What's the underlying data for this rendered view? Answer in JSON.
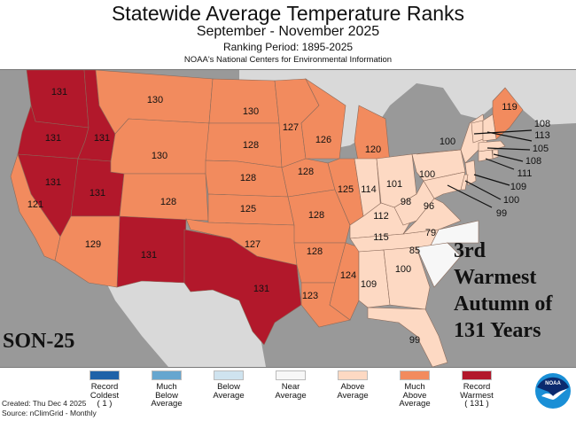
{
  "header": {
    "title": "Statewide Average Temperature Ranks",
    "period": "September - November 2025",
    "ranking_period": "Ranking Period: 1895-2025",
    "agency": "NOAA's National Centers for Environmental Information"
  },
  "annotations": {
    "season_code": "SON-25",
    "headline_lines": [
      "3rd",
      "Warmest",
      "Autumn of",
      "131 Years"
    ]
  },
  "colors": {
    "record_coldest": "#1f62a8",
    "much_below": "#66a6cf",
    "below": "#cfe3ef",
    "near": "#f7f7f7",
    "above": "#fdd9c3",
    "much_above": "#f28b5e",
    "record_warmest": "#b2182b",
    "ocean": "#999999",
    "land_other": "#d9d9d9"
  },
  "legend": [
    {
      "label_lines": [
        "Record",
        "Coldest",
        "( 1 )"
      ],
      "category": "record_coldest"
    },
    {
      "label_lines": [
        "Much",
        "Below",
        "Average"
      ],
      "category": "much_below"
    },
    {
      "label_lines": [
        "Below",
        "Average"
      ],
      "category": "below"
    },
    {
      "label_lines": [
        "Near",
        "Average"
      ],
      "category": "near"
    },
    {
      "label_lines": [
        "Above",
        "Average"
      ],
      "category": "above"
    },
    {
      "label_lines": [
        "Much",
        "Above",
        "Average"
      ],
      "category": "much_above"
    },
    {
      "label_lines": [
        "Record",
        "Warmest",
        "( 131 )"
      ],
      "category": "record_warmest"
    }
  ],
  "footer": {
    "created": "Created: Thu Dec  4 2025",
    "source": "Source: nClimGrid - Monthly",
    "logo_text": "NOAA"
  },
  "states": [
    {
      "state": "WA",
      "rank": 131,
      "category": "record_warmest"
    },
    {
      "state": "OR",
      "rank": 131,
      "category": "record_warmest"
    },
    {
      "state": "ID",
      "rank": 131,
      "category": "record_warmest"
    },
    {
      "state": "NV",
      "rank": 131,
      "category": "record_warmest"
    },
    {
      "state": "UT",
      "rank": 131,
      "category": "record_warmest"
    },
    {
      "state": "NM",
      "rank": 131,
      "category": "record_warmest"
    },
    {
      "state": "TX",
      "rank": 131,
      "category": "record_warmest"
    },
    {
      "state": "CA",
      "rank": 121,
      "category": "much_above"
    },
    {
      "state": "AZ",
      "rank": 129,
      "category": "much_above"
    },
    {
      "state": "MT",
      "rank": 130,
      "category": "much_above"
    },
    {
      "state": "WY",
      "rank": 130,
      "category": "much_above"
    },
    {
      "state": "CO",
      "rank": 128,
      "category": "much_above"
    },
    {
      "state": "ND",
      "rank": 130,
      "category": "much_above"
    },
    {
      "state": "SD",
      "rank": 128,
      "category": "much_above"
    },
    {
      "state": "NE",
      "rank": 128,
      "category": "much_above"
    },
    {
      "state": "KS",
      "rank": 125,
      "category": "much_above"
    },
    {
      "state": "OK",
      "rank": 127,
      "category": "much_above"
    },
    {
      "state": "MN",
      "rank": 127,
      "category": "much_above"
    },
    {
      "state": "IA",
      "rank": 128,
      "category": "much_above"
    },
    {
      "state": "MO",
      "rank": 128,
      "category": "much_above"
    },
    {
      "state": "AR",
      "rank": 128,
      "category": "much_above"
    },
    {
      "state": "LA",
      "rank": 123,
      "category": "much_above"
    },
    {
      "state": "WI",
      "rank": 126,
      "category": "much_above"
    },
    {
      "state": "IL",
      "rank": 125,
      "category": "much_above"
    },
    {
      "state": "MI",
      "rank": 120,
      "category": "much_above"
    },
    {
      "state": "MS",
      "rank": 124,
      "category": "much_above"
    },
    {
      "state": "ME",
      "rank": 119,
      "category": "much_above"
    },
    {
      "state": "IN",
      "rank": 114,
      "category": "above"
    },
    {
      "state": "OH",
      "rank": 101,
      "category": "above"
    },
    {
      "state": "KY",
      "rank": 112,
      "category": "above"
    },
    {
      "state": "TN",
      "rank": 115,
      "category": "above"
    },
    {
      "state": "AL",
      "rank": 109,
      "category": "above"
    },
    {
      "state": "GA",
      "rank": 100,
      "category": "above"
    },
    {
      "state": "FL",
      "rank": 99,
      "category": "above"
    },
    {
      "state": "WV",
      "rank": 98,
      "category": "above"
    },
    {
      "state": "VA",
      "rank": 96,
      "category": "above"
    },
    {
      "state": "PA",
      "rank": 100,
      "category": "above"
    },
    {
      "state": "NY",
      "rank": 100,
      "category": "above"
    },
    {
      "state": "VT",
      "rank": 108,
      "category": "above"
    },
    {
      "state": "NH",
      "rank": 113,
      "category": "above"
    },
    {
      "state": "MA",
      "rank": 105,
      "category": "above"
    },
    {
      "state": "RI",
      "rank": 108,
      "category": "above"
    },
    {
      "state": "CT",
      "rank": 111,
      "category": "above"
    },
    {
      "state": "NJ",
      "rank": 109,
      "category": "above"
    },
    {
      "state": "DE",
      "rank": 100,
      "category": "above"
    },
    {
      "state": "MD",
      "rank": 99,
      "category": "above"
    },
    {
      "state": "NC",
      "rank": 79,
      "category": "near"
    },
    {
      "state": "SC",
      "rank": 85,
      "category": "near"
    }
  ]
}
